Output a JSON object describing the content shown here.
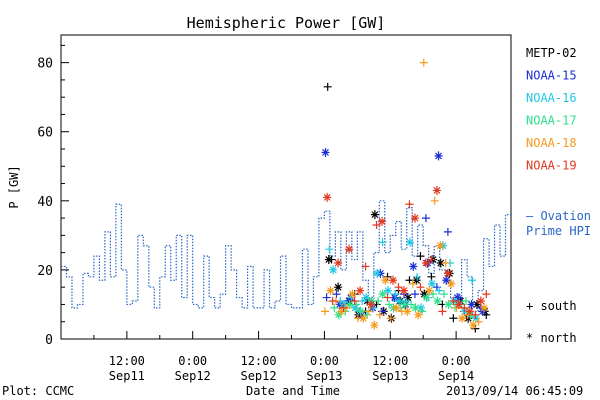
{
  "chart_data": {
    "type": "scatter",
    "title": "Hemispheric Power [GW]",
    "ylabel": "P [GW]",
    "xlabel": "Date and Time",
    "ylim": [
      0,
      88
    ],
    "xlim_hours": [
      0,
      82
    ],
    "yticks": [
      0,
      20,
      40,
      60,
      80
    ],
    "xticks": [
      {
        "h": 12,
        "time": "12:00",
        "date": "Sep11"
      },
      {
        "h": 24,
        "time": "0:00",
        "date": "Sep12"
      },
      {
        "h": 36,
        "time": "12:00",
        "date": "Sep12"
      },
      {
        "h": 48,
        "time": "0:00",
        "date": "Sep13"
      },
      {
        "h": 60,
        "time": "12:00",
        "date": "Sep13"
      },
      {
        "h": 72,
        "time": "0:00",
        "date": "Sep14"
      }
    ],
    "footer_left": "Plot: CCMC",
    "footer_right": "2013/09/14 06:45:09",
    "legend": [
      {
        "name": "METP-02",
        "color": "#000000"
      },
      {
        "name": "NOAA-15",
        "color": "#1b2fd6"
      },
      {
        "name": "NOAA-16",
        "color": "#22c8e6"
      },
      {
        "name": "NOAA-17",
        "color": "#2ee08a"
      },
      {
        "name": "NOAA-18",
        "color": "#f59b1e"
      },
      {
        "name": "NOAA-19",
        "color": "#e2381e"
      }
    ],
    "ovation": {
      "label_line1": "– Ovation",
      "label_line2": "Prime HPI",
      "color": "#2a66c8",
      "steps": [
        [
          0,
          21
        ],
        [
          1,
          18
        ],
        [
          2,
          9
        ],
        [
          3,
          10
        ],
        [
          4,
          19
        ],
        [
          5,
          18
        ],
        [
          6,
          24
        ],
        [
          7,
          17
        ],
        [
          8,
          31
        ],
        [
          9,
          18
        ],
        [
          10,
          39
        ],
        [
          11,
          20
        ],
        [
          12,
          10
        ],
        [
          13,
          11
        ],
        [
          14,
          30
        ],
        [
          15,
          27
        ],
        [
          16,
          15
        ],
        [
          17,
          9
        ],
        [
          18,
          18
        ],
        [
          19,
          27
        ],
        [
          20,
          17
        ],
        [
          21,
          30
        ],
        [
          22,
          12
        ],
        [
          23,
          30
        ],
        [
          24,
          10
        ],
        [
          25,
          9
        ],
        [
          26,
          24
        ],
        [
          27,
          12
        ],
        [
          28,
          9
        ],
        [
          29,
          13
        ],
        [
          30,
          27
        ],
        [
          31,
          20
        ],
        [
          32,
          12
        ],
        [
          33,
          9
        ],
        [
          34,
          21
        ],
        [
          35,
          9
        ],
        [
          36,
          9
        ],
        [
          37,
          20
        ],
        [
          38,
          9
        ],
        [
          39,
          11
        ],
        [
          40,
          24
        ],
        [
          41,
          10
        ],
        [
          42,
          9
        ],
        [
          43,
          9
        ],
        [
          44,
          26
        ],
        [
          45,
          10
        ],
        [
          46,
          18
        ],
        [
          47,
          35
        ],
        [
          48,
          37
        ],
        [
          49,
          24
        ],
        [
          50,
          31
        ],
        [
          51,
          20
        ],
        [
          52,
          31
        ],
        [
          53,
          23
        ],
        [
          54,
          31
        ],
        [
          55,
          17
        ],
        [
          56,
          12
        ],
        [
          57,
          25
        ],
        [
          58,
          40
        ],
        [
          59,
          25
        ],
        [
          60,
          30
        ],
        [
          61,
          34
        ],
        [
          62,
          26
        ],
        [
          63,
          38
        ],
        [
          64,
          24
        ],
        [
          65,
          33
        ],
        [
          66,
          27
        ],
        [
          67,
          19
        ],
        [
          68,
          27
        ],
        [
          69,
          20
        ],
        [
          70,
          17
        ],
        [
          71,
          12
        ],
        [
          72,
          10
        ],
        [
          73,
          23
        ],
        [
          74,
          18
        ],
        [
          75,
          8
        ],
        [
          76,
          14
        ],
        [
          77,
          29
        ],
        [
          78,
          21
        ],
        [
          79,
          33
        ],
        [
          80,
          24
        ],
        [
          81,
          36
        ]
      ]
    },
    "markers": {
      "south": "+ south",
      "north": "* north"
    },
    "series": [
      {
        "name": "METP-02",
        "south": [
          [
            48.6,
            73
          ],
          [
            49.3,
            23
          ],
          [
            51.3,
            10
          ],
          [
            53.5,
            13
          ],
          [
            55.5,
            8
          ],
          [
            57.5,
            10
          ],
          [
            59.5,
            18
          ],
          [
            61.5,
            14
          ],
          [
            63.5,
            17
          ],
          [
            65.5,
            24
          ],
          [
            67.5,
            18
          ],
          [
            69.5,
            10
          ],
          [
            71.5,
            6
          ],
          [
            73.5,
            8
          ],
          [
            75.5,
            3
          ],
          [
            77.5,
            7
          ]
        ],
        "north": [
          [
            48.8,
            23
          ],
          [
            50.5,
            15
          ],
          [
            52.5,
            11
          ],
          [
            54.2,
            7
          ],
          [
            55.8,
            11
          ],
          [
            57.2,
            36
          ],
          [
            58.8,
            8
          ],
          [
            60.2,
            6
          ],
          [
            61.8,
            11
          ],
          [
            63.2,
            12
          ],
          [
            64.8,
            17
          ],
          [
            66.2,
            13
          ],
          [
            67.8,
            23
          ],
          [
            69.2,
            22
          ],
          [
            70.8,
            19
          ],
          [
            72.8,
            11
          ],
          [
            74.2,
            6
          ],
          [
            75.8,
            10
          ],
          [
            77.2,
            8
          ]
        ]
      },
      {
        "name": "NOAA-15",
        "south": [
          [
            48.4,
            12
          ],
          [
            50.2,
            13
          ],
          [
            52.2,
            11
          ],
          [
            54.5,
            8
          ],
          [
            56.5,
            10
          ],
          [
            58.5,
            8
          ],
          [
            60.5,
            12
          ],
          [
            62.5,
            13
          ],
          [
            64.5,
            13
          ],
          [
            66.5,
            35
          ],
          [
            68.5,
            15
          ],
          [
            70.5,
            31
          ],
          [
            72.5,
            12
          ],
          [
            74.5,
            7
          ],
          [
            76.5,
            9
          ]
        ],
        "north": [
          [
            48.2,
            54
          ],
          [
            50.8,
            10
          ],
          [
            52.8,
            12
          ],
          [
            54.8,
            7
          ],
          [
            56.8,
            9
          ],
          [
            58.2,
            19
          ],
          [
            60.8,
            12
          ],
          [
            62.8,
            10
          ],
          [
            64.2,
            21
          ],
          [
            66.8,
            22
          ],
          [
            68.8,
            53
          ],
          [
            70.2,
            17
          ],
          [
            72.2,
            12
          ],
          [
            74.8,
            10
          ],
          [
            76.8,
            8
          ]
        ]
      },
      {
        "name": "NOAA-16",
        "south": [
          [
            48.9,
            26
          ],
          [
            50.9,
            11
          ],
          [
            52.9,
            12
          ],
          [
            54.9,
            11
          ],
          [
            56.9,
            9
          ],
          [
            58.6,
            28
          ],
          [
            60.9,
            13
          ],
          [
            62.9,
            11
          ],
          [
            64.9,
            18
          ],
          [
            66.9,
            12
          ],
          [
            68.9,
            14
          ],
          [
            70.9,
            22
          ],
          [
            72.9,
            10
          ],
          [
            74.9,
            17
          ]
        ],
        "north": [
          [
            49.6,
            20
          ],
          [
            51.6,
            10
          ],
          [
            53.6,
            9
          ],
          [
            55.6,
            12
          ],
          [
            57.6,
            19
          ],
          [
            59.6,
            14
          ],
          [
            61.6,
            11
          ],
          [
            63.6,
            28
          ],
          [
            65.6,
            9
          ],
          [
            67.6,
            16
          ],
          [
            69.6,
            27
          ],
          [
            71.6,
            11
          ],
          [
            73.6,
            8
          ],
          [
            75.6,
            6
          ]
        ]
      },
      {
        "name": "NOAA-17",
        "south": [
          [
            49.8,
            9
          ],
          [
            51.8,
            8
          ],
          [
            53.8,
            10
          ],
          [
            55.8,
            7
          ],
          [
            57.8,
            11
          ],
          [
            59.8,
            10
          ],
          [
            61.8,
            9
          ],
          [
            63.8,
            10
          ],
          [
            65.8,
            8
          ],
          [
            67.8,
            13
          ],
          [
            69.8,
            13
          ],
          [
            71.8,
            9
          ],
          [
            73.8,
            11
          ]
        ],
        "north": [
          [
            50.6,
            7
          ],
          [
            52.6,
            10
          ],
          [
            54.6,
            8
          ],
          [
            56.6,
            11
          ],
          [
            58.6,
            13
          ],
          [
            60.6,
            9
          ],
          [
            62.6,
            10
          ],
          [
            64.6,
            9
          ],
          [
            66.6,
            12
          ],
          [
            68.6,
            11
          ],
          [
            70.6,
            10
          ],
          [
            72.6,
            10
          ],
          [
            74.6,
            7
          ]
        ]
      },
      {
        "name": "NOAA-18",
        "south": [
          [
            48.1,
            8
          ],
          [
            50.1,
            11
          ],
          [
            52.1,
            9
          ],
          [
            54.1,
            6
          ],
          [
            56.1,
            8
          ],
          [
            58.1,
            7
          ],
          [
            60.1,
            6
          ],
          [
            62.1,
            8
          ],
          [
            64.1,
            16
          ],
          [
            66.1,
            80
          ],
          [
            68.1,
            40
          ],
          [
            70.1,
            22
          ],
          [
            72.1,
            9
          ],
          [
            74.1,
            7
          ],
          [
            76.1,
            5
          ]
        ],
        "north": [
          [
            49.1,
            14
          ],
          [
            51.1,
            8
          ],
          [
            53.1,
            13
          ],
          [
            55.1,
            6
          ],
          [
            57.1,
            4
          ],
          [
            59.1,
            17
          ],
          [
            61.1,
            9
          ],
          [
            63.1,
            8
          ],
          [
            65.1,
            7
          ],
          [
            67.1,
            14
          ],
          [
            69.1,
            27
          ],
          [
            71.1,
            16
          ],
          [
            73.1,
            6
          ],
          [
            75.1,
            4
          ],
          [
            77.1,
            9
          ]
        ]
      },
      {
        "name": "NOAA-19",
        "south": [
          [
            49.5,
            11
          ],
          [
            51.5,
            9
          ],
          [
            53.5,
            11
          ],
          [
            55.5,
            21
          ],
          [
            57.5,
            33
          ],
          [
            59.5,
            12
          ],
          [
            61.5,
            15
          ],
          [
            63.5,
            39
          ],
          [
            65.5,
            15
          ],
          [
            67.5,
            23
          ],
          [
            69.5,
            8
          ],
          [
            71.5,
            11
          ],
          [
            73.5,
            9
          ],
          [
            75.5,
            7
          ],
          [
            77.5,
            13
          ]
        ],
        "north": [
          [
            48.5,
            41
          ],
          [
            50.5,
            22
          ],
          [
            52.5,
            26
          ],
          [
            54.5,
            14
          ],
          [
            56.5,
            10
          ],
          [
            58.5,
            34
          ],
          [
            60.5,
            17
          ],
          [
            62.5,
            14
          ],
          [
            64.5,
            35
          ],
          [
            66.5,
            22
          ],
          [
            68.5,
            43
          ],
          [
            70.5,
            19
          ],
          [
            72.5,
            10
          ],
          [
            74.5,
            8
          ],
          [
            76.5,
            11
          ]
        ]
      }
    ]
  }
}
